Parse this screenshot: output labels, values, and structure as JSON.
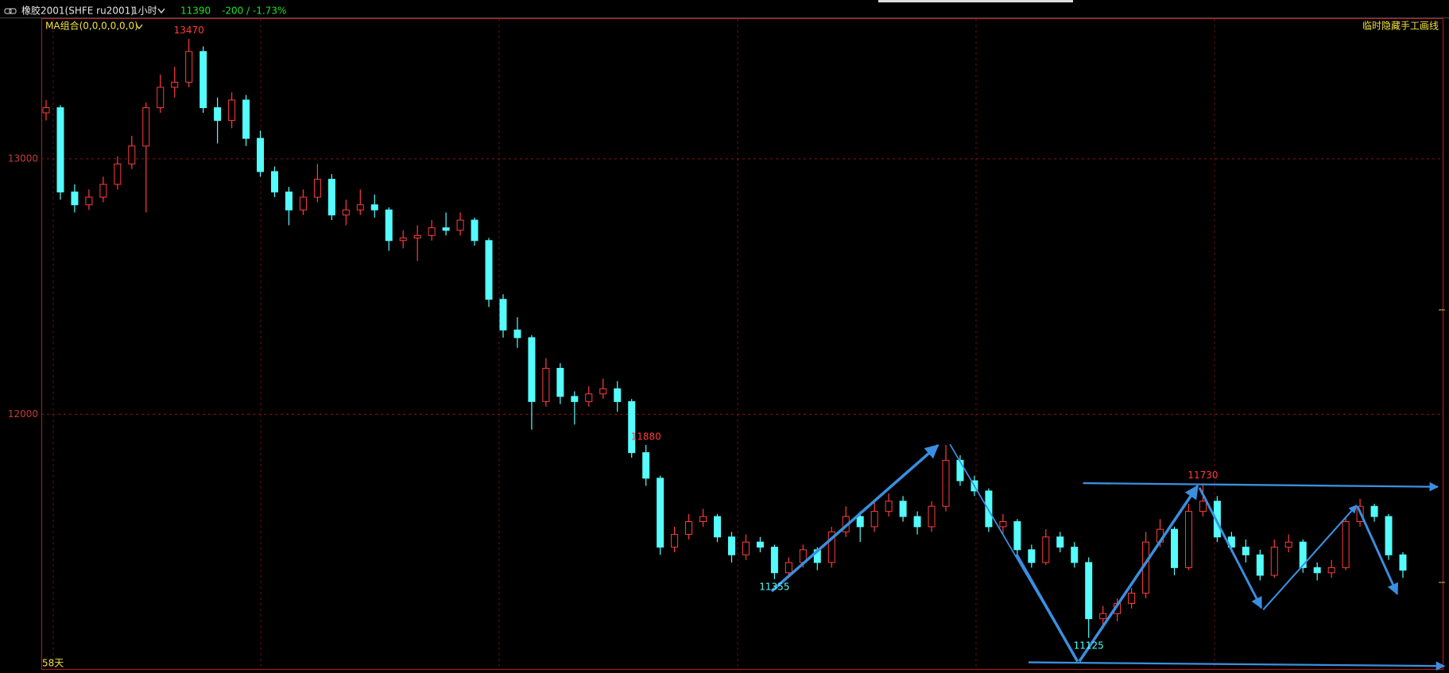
{
  "header": {
    "symbol": "橡胶2001(SHFE ru2001)",
    "period": "1小时",
    "last_price": 11390,
    "change": "-200 / -1.73%"
  },
  "chart_data": {
    "type": "candlestick",
    "indicator": "MA组合(0,0,0,0,0,0)",
    "toggle": "临时隐藏手工画线",
    "span": "58天",
    "ylim": [
      11000,
      13550
    ],
    "yticks": [
      13000,
      12000
    ],
    "grid": true,
    "up_color": "#ff3c3c",
    "down_color": "#54fcfc",
    "high_labels": [
      13470,
      11880,
      11730
    ],
    "low_labels": [
      11355,
      11125
    ],
    "candles": [
      [
        13180,
        13230,
        13150,
        13200
      ],
      [
        13200,
        13210,
        12840,
        12870
      ],
      [
        12870,
        12900,
        12790,
        12820
      ],
      [
        12820,
        12880,
        12800,
        12850
      ],
      [
        12850,
        12930,
        12830,
        12900
      ],
      [
        12900,
        13010,
        12880,
        12980
      ],
      [
        12980,
        13090,
        12960,
        13050
      ],
      [
        13050,
        13220,
        12790,
        13200
      ],
      [
        13200,
        13330,
        13180,
        13280
      ],
      [
        13280,
        13360,
        13240,
        13300
      ],
      [
        13300,
        13470,
        13280,
        13420
      ],
      [
        13420,
        13440,
        13180,
        13200
      ],
      [
        13200,
        13240,
        13060,
        13150
      ],
      [
        13150,
        13260,
        13120,
        13230
      ],
      [
        13230,
        13250,
        13050,
        13080
      ],
      [
        13080,
        13110,
        12930,
        12950
      ],
      [
        12950,
        12970,
        12850,
        12870
      ],
      [
        12870,
        12890,
        12740,
        12800
      ],
      [
        12800,
        12880,
        12780,
        12850
      ],
      [
        12850,
        12980,
        12830,
        12920
      ],
      [
        12920,
        12940,
        12760,
        12780
      ],
      [
        12780,
        12840,
        12740,
        12800
      ],
      [
        12800,
        12880,
        12780,
        12820
      ],
      [
        12820,
        12860,
        12770,
        12800
      ],
      [
        12800,
        12810,
        12640,
        12680
      ],
      [
        12680,
        12720,
        12650,
        12690
      ],
      [
        12690,
        12740,
        12600,
        12700
      ],
      [
        12700,
        12760,
        12680,
        12730
      ],
      [
        12730,
        12790,
        12700,
        12720
      ],
      [
        12720,
        12790,
        12700,
        12760
      ],
      [
        12760,
        12770,
        12660,
        12680
      ],
      [
        12680,
        12690,
        12420,
        12450
      ],
      [
        12450,
        12470,
        12300,
        12330
      ],
      [
        12330,
        12380,
        12260,
        12300
      ],
      [
        12300,
        12310,
        11940,
        12050
      ],
      [
        12050,
        12220,
        12030,
        12180
      ],
      [
        12180,
        12200,
        12040,
        12070
      ],
      [
        12070,
        12090,
        11960,
        12050
      ],
      [
        12050,
        12110,
        12030,
        12080
      ],
      [
        12080,
        12140,
        12060,
        12100
      ],
      [
        12100,
        12130,
        12010,
        12050
      ],
      [
        12050,
        12060,
        11830,
        11850
      ],
      [
        11850,
        11880,
        11720,
        11750
      ],
      [
        11750,
        11760,
        11450,
        11480
      ],
      [
        11480,
        11560,
        11460,
        11530
      ],
      [
        11530,
        11610,
        11510,
        11580
      ],
      [
        11580,
        11630,
        11560,
        11600
      ],
      [
        11600,
        11610,
        11500,
        11520
      ],
      [
        11520,
        11540,
        11420,
        11450
      ],
      [
        11450,
        11530,
        11430,
        11500
      ],
      [
        11500,
        11520,
        11460,
        11480
      ],
      [
        11480,
        11490,
        11355,
        11380
      ],
      [
        11380,
        11440,
        11370,
        11420
      ],
      [
        11420,
        11490,
        11400,
        11470
      ],
      [
        11470,
        11480,
        11390,
        11420
      ],
      [
        11420,
        11560,
        11400,
        11540
      ],
      [
        11540,
        11640,
        11520,
        11600
      ],
      [
        11600,
        11620,
        11500,
        11560
      ],
      [
        11560,
        11660,
        11540,
        11620
      ],
      [
        11620,
        11690,
        11600,
        11660
      ],
      [
        11660,
        11680,
        11580,
        11600
      ],
      [
        11600,
        11620,
        11530,
        11560
      ],
      [
        11560,
        11660,
        11540,
        11640
      ],
      [
        11640,
        11880,
        11620,
        11820
      ],
      [
        11820,
        11840,
        11720,
        11740
      ],
      [
        11740,
        11760,
        11680,
        11700
      ],
      [
        11700,
        11710,
        11540,
        11560
      ],
      [
        11560,
        11610,
        11530,
        11580
      ],
      [
        11580,
        11590,
        11440,
        11470
      ],
      [
        11470,
        11490,
        11400,
        11420
      ],
      [
        11420,
        11550,
        11410,
        11520
      ],
      [
        11520,
        11540,
        11460,
        11480
      ],
      [
        11480,
        11500,
        11400,
        11420
      ],
      [
        11420,
        11440,
        11125,
        11200
      ],
      [
        11200,
        11250,
        11160,
        11220
      ],
      [
        11220,
        11280,
        11190,
        11260
      ],
      [
        11260,
        11320,
        11240,
        11300
      ],
      [
        11300,
        11540,
        11280,
        11500
      ],
      [
        11500,
        11590,
        11480,
        11550
      ],
      [
        11550,
        11560,
        11370,
        11400
      ],
      [
        11400,
        11650,
        11390,
        11620
      ],
      [
        11620,
        11730,
        11600,
        11660
      ],
      [
        11660,
        11680,
        11500,
        11520
      ],
      [
        11520,
        11540,
        11460,
        11480
      ],
      [
        11480,
        11510,
        11420,
        11450
      ],
      [
        11450,
        11470,
        11350,
        11370
      ],
      [
        11370,
        11510,
        11360,
        11480
      ],
      [
        11480,
        11530,
        11460,
        11500
      ],
      [
        11500,
        11510,
        11380,
        11400
      ],
      [
        11400,
        11420,
        11350,
        11380
      ],
      [
        11380,
        11430,
        11360,
        11400
      ],
      [
        11400,
        11600,
        11390,
        11580
      ],
      [
        11580,
        11670,
        11560,
        11640
      ],
      [
        11640,
        11650,
        11580,
        11600
      ],
      [
        11600,
        11610,
        11430,
        11450
      ],
      [
        11450,
        11460,
        11360,
        11390
      ]
    ]
  }
}
